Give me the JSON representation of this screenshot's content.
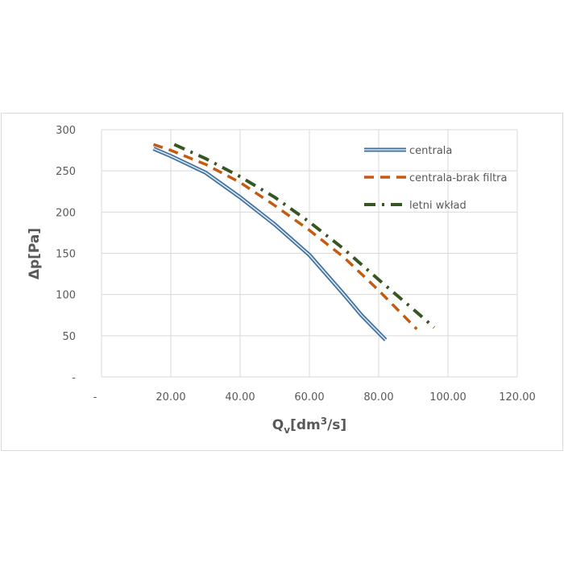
{
  "chart_data": {
    "type": "line",
    "y_label": "Δp[Pa]",
    "x_label_parts": [
      "Q",
      "v",
      "[dm",
      "3",
      "/s]"
    ],
    "xlim": [
      0,
      120
    ],
    "xticks": [
      {
        "value": 0,
        "label": "-"
      },
      {
        "value": 20,
        "label": "20.00"
      },
      {
        "value": 40,
        "label": "40.00"
      },
      {
        "value": 60,
        "label": "60.00"
      },
      {
        "value": 80,
        "label": "80.00"
      },
      {
        "value": 100,
        "label": "100.00"
      },
      {
        "value": 120,
        "label": "120.00"
      }
    ],
    "ylim": [
      0,
      300
    ],
    "yticks": [
      {
        "value": 0,
        "label": "-"
      },
      50,
      100,
      150,
      200,
      250,
      300
    ],
    "grid": true,
    "legend": "top-right",
    "series": [
      {
        "name": "centrala",
        "color": "#41719c",
        "style": "double",
        "x": [
          15,
          20,
          30,
          40,
          50,
          60,
          70,
          75,
          82
        ],
        "values": [
          277,
          268,
          248,
          218,
          185,
          148,
          100,
          75,
          45
        ]
      },
      {
        "name": "centrala-brak filtra",
        "color": "#c55a11",
        "style": "dashed",
        "x": [
          15,
          20,
          30,
          40,
          50,
          60,
          70,
          80,
          91
        ],
        "values": [
          282,
          275,
          258,
          236,
          208,
          178,
          145,
          105,
          58
        ]
      },
      {
        "name": "letni wkład",
        "color": "#375623",
        "style": "dashdot",
        "x": [
          21,
          30,
          40,
          50,
          60,
          70,
          80,
          90,
          96
        ],
        "values": [
          282,
          265,
          243,
          218,
          188,
          155,
          118,
          82,
          60
        ]
      }
    ]
  }
}
